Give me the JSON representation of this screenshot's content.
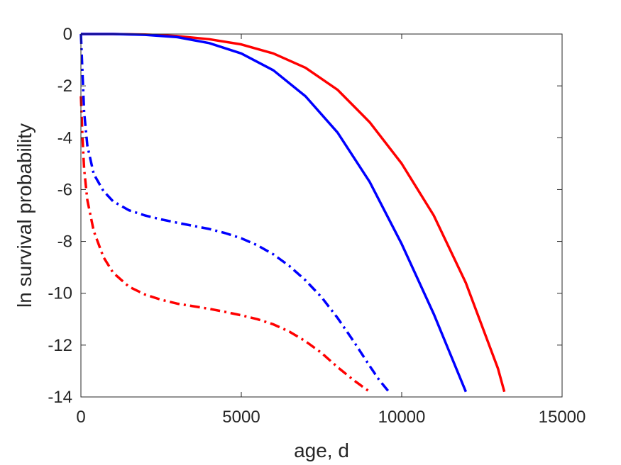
{
  "chart_data": {
    "type": "line",
    "xlabel": "age, d",
    "ylabel": "ln survival probability",
    "xlim": [
      0,
      15000
    ],
    "ylim": [
      -14,
      0
    ],
    "xticks": [
      0,
      5000,
      10000,
      15000
    ],
    "yticks": [
      0,
      -2,
      -4,
      -6,
      -8,
      -10,
      -12,
      -14
    ],
    "grid": false,
    "legend": "none",
    "series": [
      {
        "color": "#ff0000",
        "style": "solid",
        "x": [
          0,
          1000,
          2000,
          3000,
          4000,
          5000,
          6000,
          7000,
          8000,
          9000,
          10000,
          11000,
          12000,
          13000,
          13200
        ],
        "y": [
          0,
          0,
          -0.02,
          -0.08,
          -0.2,
          -0.4,
          -0.75,
          -1.3,
          -2.15,
          -3.4,
          -5.0,
          -7.0,
          -9.6,
          -12.9,
          -13.8
        ]
      },
      {
        "color": "#0000ff",
        "style": "solid",
        "x": [
          0,
          1000,
          2000,
          3000,
          4000,
          5000,
          6000,
          7000,
          8000,
          9000,
          10000,
          11000,
          12000
        ],
        "y": [
          0,
          0,
          -0.03,
          -0.12,
          -0.35,
          -0.75,
          -1.4,
          -2.4,
          -3.8,
          -5.7,
          -8.1,
          -10.8,
          -13.8
        ]
      },
      {
        "color": "#0000ff",
        "style": "dashdot",
        "x": [
          0,
          50,
          100,
          200,
          400,
          700,
          1000,
          1500,
          2000,
          2500,
          3000,
          3500,
          4000,
          4500,
          5000,
          5500,
          6000,
          6500,
          7000,
          7500,
          8000,
          8500,
          9000,
          9300,
          9600
        ],
        "y": [
          0,
          -1.5,
          -3.0,
          -4.3,
          -5.4,
          -6.05,
          -6.45,
          -6.8,
          -7.0,
          -7.15,
          -7.28,
          -7.4,
          -7.52,
          -7.68,
          -7.88,
          -8.15,
          -8.5,
          -8.95,
          -9.5,
          -10.15,
          -10.95,
          -11.85,
          -12.8,
          -13.35,
          -13.8
        ]
      },
      {
        "color": "#ff0000",
        "style": "dashdot",
        "x": [
          0,
          50,
          100,
          200,
          400,
          700,
          1000,
          1500,
          2000,
          2500,
          3000,
          3500,
          4000,
          4500,
          5000,
          5500,
          6000,
          6500,
          7000,
          7500,
          8000,
          8500,
          9000
        ],
        "y": [
          -2.4,
          -4.0,
          -5.2,
          -6.4,
          -7.6,
          -8.6,
          -9.2,
          -9.75,
          -10.05,
          -10.25,
          -10.4,
          -10.5,
          -10.6,
          -10.72,
          -10.85,
          -11.0,
          -11.2,
          -11.48,
          -11.85,
          -12.3,
          -12.85,
          -13.35,
          -13.8
        ]
      }
    ]
  }
}
